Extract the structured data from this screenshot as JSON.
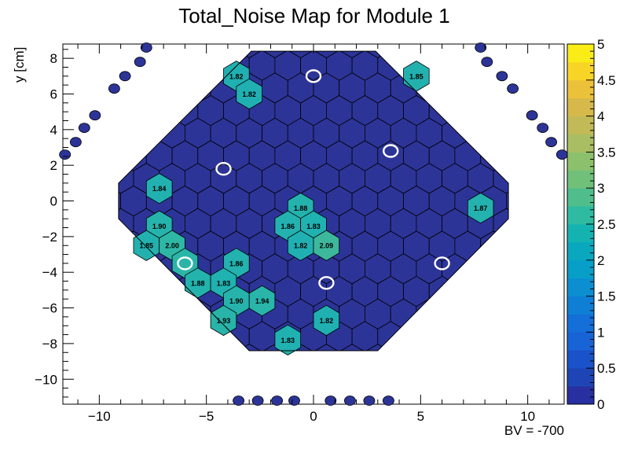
{
  "chart_data": {
    "type": "heatmap",
    "title": "Total_Noise Map for Module 1",
    "ylabel": "y [cm]",
    "xlabel": "",
    "annotation": "BV = -700",
    "xlim": [
      -11.7,
      11.7
    ],
    "ylim": [
      -11.4,
      8.8
    ],
    "x_ticks": [
      -10,
      -5,
      0,
      5,
      10
    ],
    "x_tick_labels": [
      "−10",
      "−5",
      "0",
      "5",
      "10"
    ],
    "y_ticks": [
      -10,
      -8,
      -6,
      -4,
      -2,
      0,
      2,
      4,
      6,
      8
    ],
    "y_tick_labels": [
      "−10",
      "−8",
      "−6",
      "−4",
      "−2",
      "0",
      "2",
      "4",
      "6",
      "8"
    ],
    "colorbar": {
      "min": 0,
      "max": 5,
      "ticks": [
        0,
        0.5,
        1,
        1.5,
        2,
        2.5,
        3,
        3.5,
        4,
        4.5,
        5
      ],
      "tick_labels": [
        "0",
        "0.5",
        "1",
        "1.5",
        "2",
        "2.5",
        "3",
        "3.5",
        "4",
        "4.5",
        "5"
      ]
    },
    "background_cell_value_range": [
      0,
      0.25
    ],
    "cell_pitch_cm": 1.2,
    "labeled_cells": [
      {
        "x": -3.6,
        "y": 7.0,
        "value": 1.82,
        "label": "1.82"
      },
      {
        "x": -3.0,
        "y": 6.0,
        "value": 1.82,
        "label": "1.82"
      },
      {
        "x": 4.8,
        "y": 7.0,
        "value": 1.85,
        "label": "1.85"
      },
      {
        "x": -7.2,
        "y": 0.7,
        "value": 1.84,
        "label": "1.84"
      },
      {
        "x": -0.6,
        "y": -0.4,
        "value": 1.88,
        "label": "1.88"
      },
      {
        "x": 7.8,
        "y": -0.4,
        "value": 1.87,
        "label": "1.87"
      },
      {
        "x": -7.2,
        "y": -1.4,
        "value": 1.9,
        "label": "1.90"
      },
      {
        "x": -1.2,
        "y": -1.4,
        "value": 1.86,
        "label": "1.86"
      },
      {
        "x": 0.0,
        "y": -1.4,
        "value": 1.83,
        "label": "1.83"
      },
      {
        "x": -7.8,
        "y": -2.5,
        "value": 1.85,
        "label": "1.85"
      },
      {
        "x": -6.6,
        "y": -2.5,
        "value": 2.0,
        "label": "2.00"
      },
      {
        "x": -0.6,
        "y": -2.5,
        "value": 1.82,
        "label": "1.82"
      },
      {
        "x": 0.6,
        "y": -2.5,
        "value": 2.09,
        "label": "2.09"
      },
      {
        "x": -6.0,
        "y": -3.5,
        "value": 1.95,
        "label": ""
      },
      {
        "x": -3.6,
        "y": -3.5,
        "value": 1.86,
        "label": "1.86"
      },
      {
        "x": -5.4,
        "y": -4.6,
        "value": 1.88,
        "label": "1.88"
      },
      {
        "x": -4.2,
        "y": -4.6,
        "value": 1.83,
        "label": "1.83"
      },
      {
        "x": -3.6,
        "y": -5.6,
        "value": 1.9,
        "label": "1.90"
      },
      {
        "x": -2.4,
        "y": -5.6,
        "value": 1.94,
        "label": "1.94"
      },
      {
        "x": -4.2,
        "y": -6.7,
        "value": 1.93,
        "label": "1.93"
      },
      {
        "x": 0.6,
        "y": -6.7,
        "value": 1.82,
        "label": "1.82"
      },
      {
        "x": -1.2,
        "y": -7.8,
        "value": 1.83,
        "label": "1.83"
      }
    ],
    "circled_cells": [
      {
        "x": 0.0,
        "y": 7.0
      },
      {
        "x": 3.6,
        "y": 2.8
      },
      {
        "x": -4.2,
        "y": 1.8
      },
      {
        "x": -6.0,
        "y": -3.5
      },
      {
        "x": 0.6,
        "y": -4.6
      },
      {
        "x": 6.0,
        "y": -3.5
      }
    ],
    "outer_dots": [
      {
        "x": -7.8,
        "y": 8.6
      },
      {
        "x": -8.1,
        "y": 7.8
      },
      {
        "x": -8.8,
        "y": 7.0
      },
      {
        "x": -9.3,
        "y": 6.3
      },
      {
        "x": -10.2,
        "y": 4.8
      },
      {
        "x": -10.7,
        "y": 4.1
      },
      {
        "x": -11.1,
        "y": 3.3
      },
      {
        "x": -11.6,
        "y": 2.6
      },
      {
        "x": 7.8,
        "y": 8.6
      },
      {
        "x": 8.1,
        "y": 7.8
      },
      {
        "x": 8.8,
        "y": 7.0
      },
      {
        "x": 9.3,
        "y": 6.3
      },
      {
        "x": 10.2,
        "y": 4.8
      },
      {
        "x": 10.7,
        "y": 4.1
      },
      {
        "x": 11.1,
        "y": 3.3
      },
      {
        "x": 11.6,
        "y": 2.6
      },
      {
        "x": -3.5,
        "y": -11.2
      },
      {
        "x": -2.6,
        "y": -11.2
      },
      {
        "x": -1.7,
        "y": -11.2
      },
      {
        "x": -0.9,
        "y": -11.2
      },
      {
        "x": 0.8,
        "y": -11.2
      },
      {
        "x": 1.7,
        "y": -11.2
      },
      {
        "x": 2.6,
        "y": -11.2
      },
      {
        "x": 3.5,
        "y": -11.2
      }
    ]
  }
}
